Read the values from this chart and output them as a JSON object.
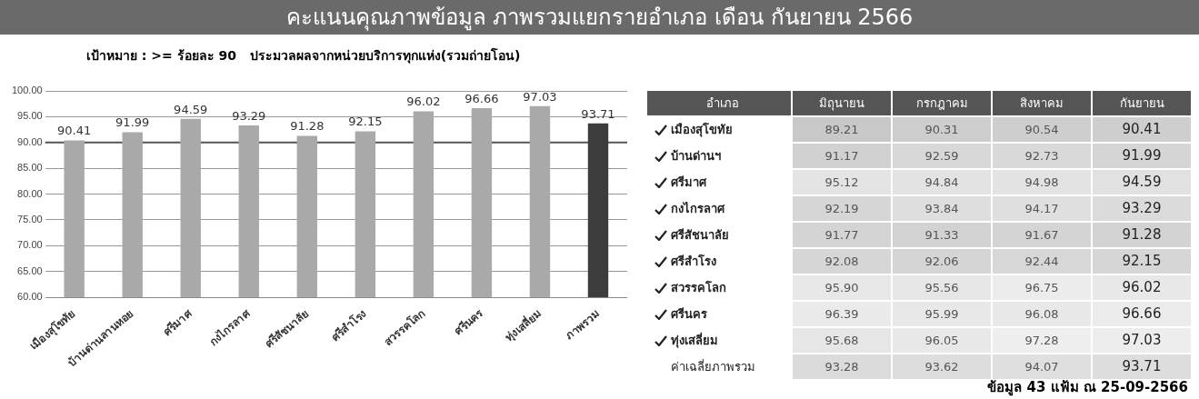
{
  "chart_data": [
    {
      "type": "bar",
      "title": "คะแนนคุณภาพข้อมูล ภาพรวมแยกรายอำเภอ เดือน กันยายน 2566",
      "subtitle": "เป้าหมาย : >= ร้อยละ 90   ประมวลผลจากหน่วยบริการทุกแห่ง(รวมถ่ายโอน)",
      "categories": [
        "เมืองสุโขทัย",
        "บ้านด่านลานหอย",
        "ศรีมาศ",
        "กงไกรลาศ",
        "ศรีสัชนาลัย",
        "ศรีสำโรง",
        "สวรรคโลก",
        "ศรีนคร",
        "ทุ่งเสลี่ยม",
        "ภาพรวม"
      ],
      "values": [
        90.41,
        91.99,
        94.59,
        93.29,
        91.28,
        92.15,
        96.02,
        96.66,
        97.03,
        93.71
      ],
      "colors": [
        "#a9a9a9",
        "#a9a9a9",
        "#a9a9a9",
        "#a9a9a9",
        "#a9a9a9",
        "#a9a9a9",
        "#a9a9a9",
        "#a9a9a9",
        "#a9a9a9",
        "#3c3c3c"
      ],
      "data_labels": true,
      "ylim": [
        60,
        100
      ],
      "yticks": [
        {
          "value": 60,
          "label": "60.00"
        },
        {
          "value": 65,
          "label": "65.00"
        },
        {
          "value": 70,
          "label": "70.00"
        },
        {
          "value": 75,
          "label": "75.00"
        },
        {
          "value": 80,
          "label": "80.00"
        },
        {
          "value": 85,
          "label": "85.00"
        },
        {
          "value": 90,
          "label": "90.00"
        },
        {
          "value": 95,
          "label": "95.00"
        },
        {
          "value": 100,
          "label": "100.00"
        }
      ],
      "grid": "y",
      "ref_lines": [
        {
          "axis": "y",
          "value": 90,
          "color": "#555555"
        }
      ]
    },
    {
      "type": "heatmap",
      "ylabel": "อำเภอ",
      "categories": [
        "มิถุนายน",
        "กรกฎาคม",
        "สิงหาคม",
        "กันยายน"
      ],
      "y_categories": [
        "เมืองสุโขทัย",
        "บ้านด่านฯ",
        "ศรีมาศ",
        "กงไกรลาศ",
        "ศรีสัชนาลัย",
        "ศรีสำโรง",
        "สวรรคโลก",
        "ศรีนคร",
        "ทุ่งเสลี่ยม",
        "ค่าเฉลี่ยภาพรวม"
      ],
      "cells": [
        [
          89.21,
          90.31,
          90.54,
          90.41
        ],
        [
          91.17,
          92.59,
          92.73,
          91.99
        ],
        [
          95.12,
          94.84,
          94.98,
          94.59
        ],
        [
          92.19,
          93.84,
          94.17,
          93.29
        ],
        [
          91.77,
          91.33,
          91.67,
          91.28
        ],
        [
          92.08,
          92.06,
          92.44,
          92.15
        ],
        [
          95.9,
          95.56,
          96.75,
          96.02
        ],
        [
          96.39,
          95.99,
          96.08,
          96.66
        ],
        [
          95.68,
          96.05,
          97.28,
          97.03
        ],
        [
          93.28,
          93.62,
          94.07,
          93.71
        ]
      ],
      "cell_labels": [
        [
          "89.21",
          "90.31",
          "90.54",
          "90.41"
        ],
        [
          "91.17",
          "92.59",
          "92.73",
          "91.99"
        ],
        [
          "95.12",
          "94.84",
          "94.98",
          "94.59"
        ],
        [
          "92.19",
          "93.84",
          "94.17",
          "93.29"
        ],
        [
          "91.77",
          "91.33",
          "91.67",
          "91.28"
        ],
        [
          "92.08",
          "92.06",
          "92.44",
          "92.15"
        ],
        [
          "95.90",
          "95.56",
          "96.75",
          "96.02"
        ],
        [
          "96.39",
          "95.99",
          "96.08",
          "96.66"
        ],
        [
          "95.68",
          "96.05",
          "97.28",
          "97.03"
        ],
        [
          "93.28",
          "93.62",
          "94.07",
          "93.71"
        ]
      ],
      "annotations": [
        "ข้อมูล 43 แฟ้ม ณ 25-09-2566"
      ]
    }
  ]
}
